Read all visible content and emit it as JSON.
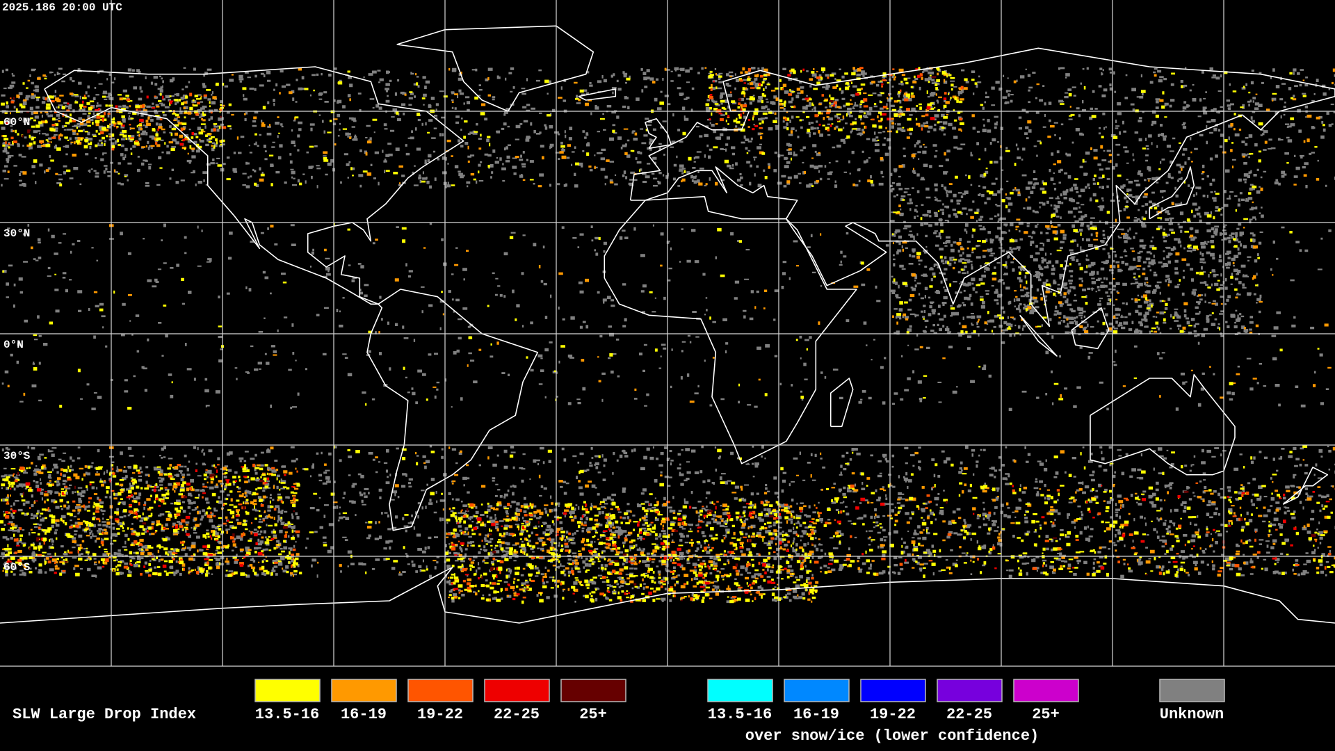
{
  "header": {
    "timestamp": "2025.186 20:00 UTC"
  },
  "map": {
    "lat_labels": [
      "60°N",
      "30°N",
      "0°N",
      "30°S",
      "60°S"
    ]
  },
  "legend": {
    "title": "SLW Large Drop Index",
    "items": [
      {
        "label": "13.5-16",
        "color": "#ffff00"
      },
      {
        "label": "16-19",
        "color": "#ff9900"
      },
      {
        "label": "19-22",
        "color": "#ff5500"
      },
      {
        "label": "22-25",
        "color": "#ee0000"
      },
      {
        "label": "25+",
        "color": "#660000"
      }
    ],
    "snow_items": [
      {
        "label": "13.5-16",
        "color": "#00ffff"
      },
      {
        "label": "16-19",
        "color": "#0088ff"
      },
      {
        "label": "19-22",
        "color": "#0000ff"
      },
      {
        "label": "22-25",
        "color": "#7700dd"
      },
      {
        "label": "25+",
        "color": "#cc00cc"
      }
    ],
    "snow_caption": "over snow/ice (lower confidence)",
    "unknown": {
      "label": "Unknown",
      "color": "#808080"
    }
  }
}
